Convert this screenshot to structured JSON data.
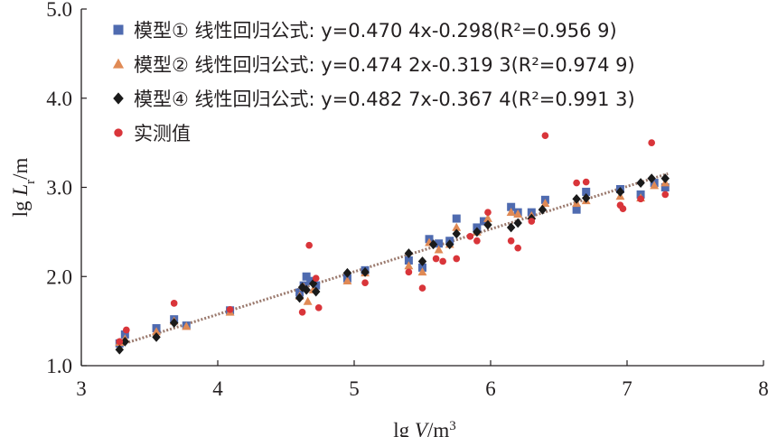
{
  "chart_data": {
    "type": "scatter",
    "xlabel": "lg V/m³",
    "ylabel": "lg Lr/m",
    "xlim": [
      3,
      8
    ],
    "ylim": [
      1.0,
      5.0
    ],
    "x_ticks": [
      "3",
      "4",
      "5",
      "6",
      "7",
      "8"
    ],
    "y_ticks": [
      "1.0",
      "2.0",
      "3.0",
      "4.0",
      "5.0"
    ],
    "legend_position": "top-left",
    "series": [
      {
        "name": "模型① 线性回归公式: y=0.470 4x-0.298(R²=0.956 9)",
        "marker": "square",
        "color": "#4f6bb0",
        "points": [
          [
            3.28,
            1.25
          ],
          [
            3.32,
            1.35
          ],
          [
            3.55,
            1.42
          ],
          [
            3.68,
            1.52
          ],
          [
            3.77,
            1.45
          ],
          [
            4.09,
            1.62
          ],
          [
            4.6,
            1.82
          ],
          [
            4.63,
            1.9
          ],
          [
            4.65,
            2.0
          ],
          [
            4.68,
            1.95
          ],
          [
            4.72,
            1.9
          ],
          [
            4.95,
            1.98
          ],
          [
            5.08,
            2.07
          ],
          [
            5.4,
            2.18
          ],
          [
            5.5,
            2.1
          ],
          [
            5.55,
            2.42
          ],
          [
            5.62,
            2.37
          ],
          [
            5.7,
            2.4
          ],
          [
            5.75,
            2.65
          ],
          [
            5.9,
            2.55
          ],
          [
            5.95,
            2.62
          ],
          [
            6.15,
            2.78
          ],
          [
            6.2,
            2.72
          ],
          [
            6.3,
            2.72
          ],
          [
            6.4,
            2.86
          ],
          [
            6.63,
            2.75
          ],
          [
            6.7,
            2.95
          ],
          [
            6.95,
            2.98
          ],
          [
            7.1,
            2.92
          ],
          [
            7.2,
            3.05
          ],
          [
            7.28,
            3.0
          ]
        ]
      },
      {
        "name": "模型② 线性回归公式: y=0.474 2x-0.319 3(R²=0.974 9)",
        "marker": "triangle",
        "color": "#e08a55",
        "points": [
          [
            3.28,
            1.26
          ],
          [
            3.32,
            1.3
          ],
          [
            3.55,
            1.38
          ],
          [
            3.68,
            1.5
          ],
          [
            3.77,
            1.44
          ],
          [
            4.09,
            1.6
          ],
          [
            4.6,
            1.78
          ],
          [
            4.63,
            1.88
          ],
          [
            4.66,
            1.72
          ],
          [
            4.7,
            1.85
          ],
          [
            4.95,
            1.95
          ],
          [
            5.08,
            2.04
          ],
          [
            5.4,
            2.12
          ],
          [
            5.5,
            2.05
          ],
          [
            5.55,
            2.38
          ],
          [
            5.62,
            2.3
          ],
          [
            5.7,
            2.36
          ],
          [
            5.75,
            2.55
          ],
          [
            5.9,
            2.5
          ],
          [
            5.98,
            2.65
          ],
          [
            6.15,
            2.72
          ],
          [
            6.2,
            2.7
          ],
          [
            6.3,
            2.68
          ],
          [
            6.4,
            2.82
          ],
          [
            6.63,
            2.82
          ],
          [
            6.7,
            2.85
          ],
          [
            6.95,
            2.9
          ],
          [
            7.1,
            2.88
          ],
          [
            7.2,
            3.02
          ],
          [
            7.28,
            3.05
          ]
        ]
      },
      {
        "name": "模型④ 线性回归公式: y=0.482 7x-0.367 4(R²=0.991 3)",
        "marker": "diamond",
        "color": "#1a1a1a",
        "points": [
          [
            3.28,
            1.18
          ],
          [
            3.32,
            1.27
          ],
          [
            3.55,
            1.32
          ],
          [
            3.68,
            1.48
          ],
          [
            4.6,
            1.76
          ],
          [
            4.62,
            1.88
          ],
          [
            4.65,
            1.85
          ],
          [
            4.7,
            1.92
          ],
          [
            4.72,
            1.83
          ],
          [
            4.95,
            2.04
          ],
          [
            5.08,
            2.05
          ],
          [
            5.4,
            2.26
          ],
          [
            5.5,
            2.17
          ],
          [
            5.58,
            2.36
          ],
          [
            5.7,
            2.36
          ],
          [
            5.75,
            2.48
          ],
          [
            5.9,
            2.5
          ],
          [
            5.98,
            2.58
          ],
          [
            6.15,
            2.55
          ],
          [
            6.2,
            2.6
          ],
          [
            6.3,
            2.65
          ],
          [
            6.38,
            2.75
          ],
          [
            6.63,
            2.87
          ],
          [
            6.7,
            2.88
          ],
          [
            6.95,
            2.95
          ],
          [
            7.1,
            3.05
          ],
          [
            7.18,
            3.1
          ],
          [
            7.28,
            3.1
          ]
        ]
      },
      {
        "name": "实测值",
        "marker": "circle",
        "color": "#d9353a",
        "points": [
          [
            3.28,
            1.27
          ],
          [
            3.33,
            1.4
          ],
          [
            3.68,
            1.7
          ],
          [
            4.09,
            1.63
          ],
          [
            4.62,
            1.6
          ],
          [
            4.67,
            2.35
          ],
          [
            4.72,
            1.98
          ],
          [
            4.74,
            1.65
          ],
          [
            5.08,
            1.93
          ],
          [
            5.4,
            2.05
          ],
          [
            5.5,
            1.87
          ],
          [
            5.6,
            2.2
          ],
          [
            5.65,
            2.17
          ],
          [
            5.75,
            2.2
          ],
          [
            5.85,
            2.45
          ],
          [
            5.9,
            2.4
          ],
          [
            5.98,
            2.72
          ],
          [
            6.15,
            2.4
          ],
          [
            6.2,
            2.32
          ],
          [
            6.3,
            2.62
          ],
          [
            6.4,
            3.58
          ],
          [
            6.63,
            3.05
          ],
          [
            6.7,
            3.06
          ],
          [
            6.95,
            2.8
          ],
          [
            6.97,
            2.76
          ],
          [
            7.1,
            2.87
          ],
          [
            7.18,
            3.5
          ],
          [
            7.28,
            2.92
          ]
        ]
      }
    ],
    "fit_line": {
      "slope": 0.4783,
      "intercept": -0.3378,
      "x_range": [
        3.27,
        7.3
      ]
    }
  }
}
